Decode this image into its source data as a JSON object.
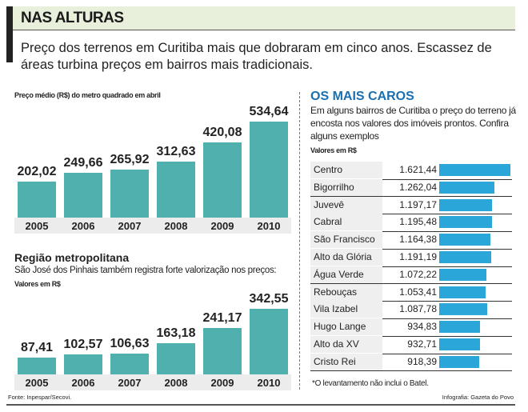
{
  "header": {
    "title": "NAS ALTURAS",
    "subtitle": "Preço dos terrenos em Curitiba mais que dobraram em cinco anos. Escassez de áreas turbina preços em bairros mais tradicionais."
  },
  "chart_data": [
    {
      "type": "bar",
      "title": "",
      "subtitle": "Preço médio (R$) do metro quadrado em abril",
      "categories": [
        "2005",
        "2006",
        "2007",
        "2008",
        "2009",
        "2010"
      ],
      "values": [
        202.02,
        249.66,
        265.92,
        312.63,
        420.08,
        534.64
      ],
      "labels": [
        "202,02",
        "249,66",
        "265,92",
        "312,63",
        "420,08",
        "534,64"
      ],
      "color": "#4fb0ae"
    },
    {
      "type": "bar",
      "title": "Região metropolitana",
      "subtitle": "São José dos Pinhais também registra forte valorização nos preços:",
      "ylabel": "Valores em R$",
      "categories": [
        "2005",
        "2006",
        "2007",
        "2008",
        "2009",
        "2010"
      ],
      "values": [
        87.41,
        102.57,
        106.63,
        163.18,
        241.17,
        342.55
      ],
      "labels": [
        "87,41",
        "102,57",
        "106,63",
        "163,18",
        "241,17",
        "342,55"
      ],
      "color": "#4fb0ae"
    },
    {
      "type": "bar",
      "orientation": "horizontal",
      "title": "OS MAIS CAROS",
      "subtitle": "Em alguns bairros de Curitiba o preço do terreno já encosta nos valores dos imóveis prontos. Confira alguns exemplos",
      "ylabel": "Valores em R$",
      "color": "#2aa6d8",
      "categories": [
        "Centro",
        "Bigorrilho",
        "Juvevê",
        "Cabral",
        "São Francisco",
        "Alto da Glória",
        "Água Verde",
        "Rebouças",
        "Vila Izabel",
        "Hugo Lange",
        "Alto da XV",
        "Cristo Rei"
      ],
      "values": [
        1621.44,
        1262.04,
        1197.17,
        1195.48,
        1164.38,
        1191.19,
        1072.22,
        1053.41,
        1087.78,
        934.83,
        932.71,
        918.39
      ],
      "labels": [
        "1.621,44",
        "1.262,04",
        "1.197,17",
        "1.195,48",
        "1.164,38",
        "1.191,19",
        "1.072,22",
        "1.053,41",
        "1.087,78",
        "934,83",
        "932,71",
        "918,39"
      ],
      "note": "*O levantamento não inclui o Batel."
    }
  ],
  "footer": {
    "source": "Fonte: Inpespar/Secovi.",
    "credit": "Infografia: Gazeta do Povo"
  }
}
